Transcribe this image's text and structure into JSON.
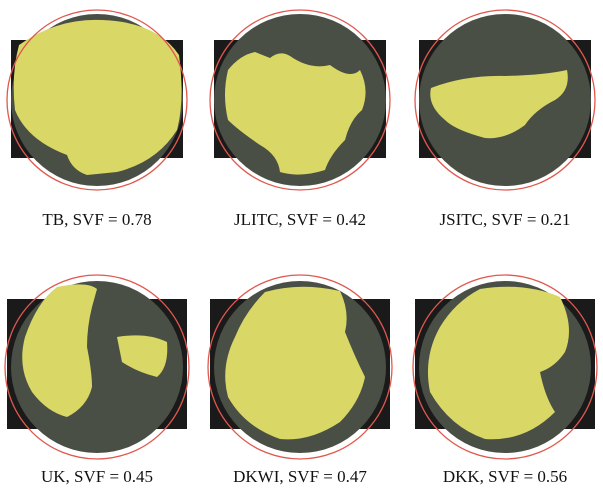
{
  "panels": [
    {
      "caption": "TB, SVF = 0.78"
    },
    {
      "caption": "JLITC, SVF = 0.42"
    },
    {
      "caption": "JSITC, SVF = 0.21"
    },
    {
      "caption": "UK, SVF = 0.45"
    },
    {
      "caption": "DKWI, SVF = 0.47"
    },
    {
      "caption": "DKK, SVF = 0.56"
    }
  ]
}
